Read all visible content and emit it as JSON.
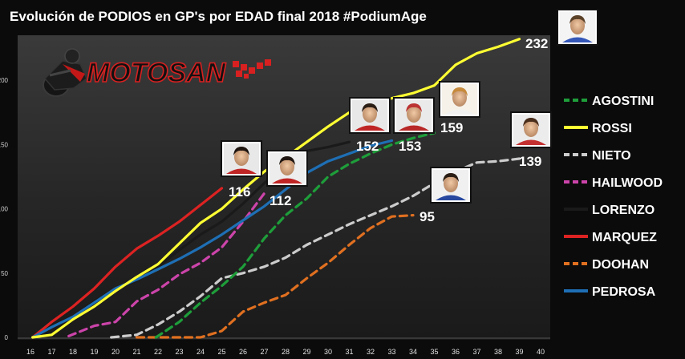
{
  "chart_data": {
    "type": "line",
    "title": "Evolución de PODIOS en GP's por EDAD final 2018 #PodiumAge",
    "logo_text": "MOTOSAN",
    "xlabel": "",
    "ylabel": "",
    "x_ticks": [
      "16",
      "17",
      "18",
      "19",
      "20",
      "21",
      "22",
      "23",
      "24",
      "25",
      "26",
      "27",
      "28",
      "29",
      "30",
      "31",
      "32",
      "33",
      "34",
      "35",
      "36",
      "37",
      "38",
      "39",
      "40"
    ],
    "y_ticks": [
      "0",
      "50",
      "100",
      "150",
      "200"
    ],
    "xlim": [
      16,
      40
    ],
    "ylim": [
      0,
      235
    ],
    "grid": false,
    "legend_position": "right",
    "series": [
      {
        "name": "AGOSTINI",
        "color": "#1e9e3a",
        "dash": true,
        "end_label": "159",
        "x": [
          21.9,
          23,
          24,
          25,
          26,
          27,
          28,
          29,
          30,
          31,
          32,
          33,
          34,
          35
        ],
        "y": [
          0,
          12,
          27,
          40,
          55,
          77,
          95,
          108,
          125,
          135,
          143,
          150,
          155,
          159
        ]
      },
      {
        "name": "ROSSI",
        "color": "#ffff33",
        "dash": false,
        "end_label": "232",
        "x": [
          16.1,
          17,
          18,
          19,
          20,
          21,
          22,
          23,
          24,
          25,
          26,
          27,
          28,
          29,
          30,
          31,
          32,
          33,
          34,
          35,
          36,
          37,
          38,
          39
        ],
        "y": [
          0,
          2,
          14,
          24,
          36,
          47,
          57,
          73,
          89,
          100,
          115,
          129,
          140,
          152,
          164,
          175,
          182,
          186,
          190,
          196,
          212,
          221,
          226,
          232
        ]
      },
      {
        "name": "NIETO",
        "color": "#cccccc",
        "dash": true,
        "end_label": "139",
        "x": [
          19.8,
          21,
          22,
          23,
          24,
          25,
          26,
          27,
          28,
          29,
          30,
          31,
          32,
          33,
          34,
          35,
          36,
          37,
          38,
          39
        ],
        "y": [
          0,
          2,
          10,
          20,
          32,
          46,
          50,
          55,
          62,
          72,
          80,
          88,
          95,
          102,
          110,
          120,
          129,
          136,
          137,
          139
        ]
      },
      {
        "name": "HAILWOOD",
        "color": "#cc44aa",
        "dash": true,
        "end_label": "112",
        "x": [
          17.8,
          19,
          20,
          21,
          22,
          23,
          24,
          25,
          26,
          27
        ],
        "y": [
          1,
          9,
          12,
          28,
          37,
          49,
          58,
          70,
          90,
          112
        ]
      },
      {
        "name": "LORENZO",
        "color": "#1a1a1a",
        "dash": false,
        "end_label": "152",
        "x": [
          16.1,
          17,
          18,
          19,
          20,
          21,
          22,
          23,
          24,
          25,
          26,
          27,
          28,
          29,
          30,
          31
        ],
        "y": [
          0,
          9,
          16,
          28,
          38,
          44,
          55,
          68,
          80,
          90,
          104,
          120,
          134,
          145,
          148,
          152
        ]
      },
      {
        "name": "MARQUEZ",
        "color": "#dd2222",
        "dash": false,
        "end_label": "116",
        "x": [
          16.1,
          17,
          18,
          19,
          20,
          21,
          22,
          23,
          24,
          25
        ],
        "y": [
          0,
          12,
          24,
          38,
          55,
          69,
          79,
          90,
          103,
          116
        ]
      },
      {
        "name": "DOOHAN",
        "color": "#e07020",
        "dash": true,
        "end_label": "95",
        "x": [
          21,
          22,
          23,
          24,
          25,
          26,
          27,
          28,
          29,
          30,
          31,
          32,
          33,
          34
        ],
        "y": [
          0,
          0,
          0,
          0,
          5,
          20,
          27,
          33,
          46,
          58,
          72,
          85,
          94,
          95
        ]
      },
      {
        "name": "PEDROSA",
        "color": "#1e6fb5",
        "dash": false,
        "end_label": "153",
        "x": [
          16.1,
          17,
          18,
          19,
          20,
          21,
          22,
          23,
          24,
          25,
          26,
          27,
          28,
          29,
          30,
          31,
          32,
          33
        ],
        "y": [
          0,
          8,
          16,
          27,
          38,
          45,
          53,
          61,
          70,
          80,
          91,
          102,
          115,
          128,
          137,
          143,
          149,
          153
        ]
      }
    ]
  }
}
